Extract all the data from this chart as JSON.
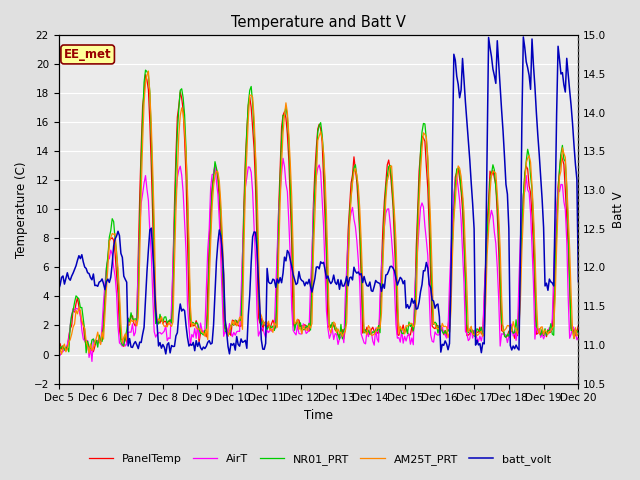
{
  "title": "Temperature and Batt V",
  "xlabel": "Time",
  "ylabel_left": "Temperature (C)",
  "ylabel_right": "Batt V",
  "annotation": "EE_met",
  "ylim_left": [
    -2,
    22
  ],
  "ylim_right": [
    10.5,
    15.0
  ],
  "yticks_left": [
    -2,
    0,
    2,
    4,
    6,
    8,
    10,
    12,
    14,
    16,
    18,
    20,
    22
  ],
  "yticks_right": [
    10.5,
    11.0,
    11.5,
    12.0,
    12.5,
    13.0,
    13.5,
    14.0,
    14.5,
    15.0
  ],
  "xtick_labels": [
    "Dec 5",
    "Dec 6",
    "Dec 7",
    "Dec 8",
    "Dec 9",
    "Dec 10",
    "Dec 11",
    "Dec 12",
    "Dec 13",
    "Dec 14",
    "Dec 15",
    "Dec 16",
    "Dec 17",
    "Dec 18",
    "Dec 19",
    "Dec 20"
  ],
  "legend_entries": [
    "PanelTemp",
    "AirT",
    "NR01_PRT",
    "AM25T_PRT",
    "batt_volt"
  ],
  "line_colors": {
    "PanelTemp": "#FF0000",
    "AirT": "#FF00FF",
    "NR01_PRT": "#00CC00",
    "AM25T_PRT": "#FF8800",
    "batt_volt": "#0000BB"
  },
  "background_color": "#E0E0E0",
  "plot_bg_color": "#EBEBEB",
  "grid_color": "#FFFFFF",
  "annotation_bg": "#FFFF99",
  "annotation_border": "#880000",
  "figsize": [
    6.4,
    4.8
  ],
  "dpi": 100
}
